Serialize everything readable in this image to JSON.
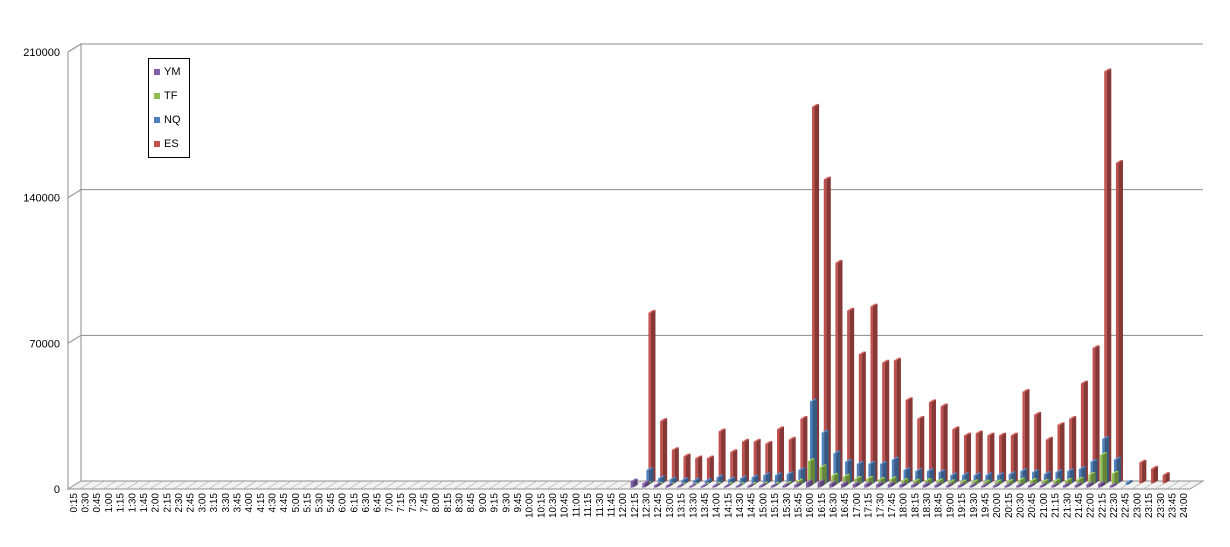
{
  "chart_data": {
    "type": "bar",
    "title": "",
    "xlabel": "",
    "ylabel": "",
    "ylim": [
      0,
      210000
    ],
    "yticks": [
      "0",
      "70000",
      "140000",
      "210000"
    ],
    "grid": true,
    "legend_position": "top-left",
    "categories": [
      "0:15",
      "0:30",
      "0:45",
      "1:00",
      "1:15",
      "1:30",
      "1:45",
      "2:00",
      "2:15",
      "2:30",
      "2:45",
      "3:00",
      "3:15",
      "3:30",
      "3:45",
      "4:00",
      "4:15",
      "4:30",
      "4:45",
      "5:00",
      "5:15",
      "5:30",
      "5:45",
      "6:00",
      "6:15",
      "6:30",
      "6:45",
      "7:00",
      "7:15",
      "7:30",
      "7:45",
      "8:00",
      "8:15",
      "8:30",
      "8:45",
      "9:00",
      "9:15",
      "9:30",
      "9:45",
      "10:00",
      "10:15",
      "10:30",
      "10:45",
      "11:00",
      "11:15",
      "11:30",
      "11:45",
      "12:00",
      "12:15",
      "12:30",
      "12:45",
      "13:00",
      "13:15",
      "13:30",
      "13:45",
      "14:00",
      "14:15",
      "14:30",
      "14:45",
      "15:00",
      "15:15",
      "15:30",
      "15:45",
      "16:00",
      "16:15",
      "16:30",
      "16:45",
      "17:00",
      "17:15",
      "17:30",
      "17:45",
      "18:00",
      "18:15",
      "18:30",
      "18:45",
      "19:00",
      "19:15",
      "19:30",
      "19:45",
      "20:00",
      "20:15",
      "20:30",
      "20:45",
      "21:00",
      "21:15",
      "21:30",
      "21:45",
      "22:00",
      "22:15",
      "22:30",
      "22:45",
      "23:00",
      "23:15",
      "23:30",
      "23:45",
      "24:00"
    ],
    "series": [
      {
        "name": "YM",
        "color": "#7f5fa8",
        "values": [
          0,
          0,
          0,
          0,
          0,
          0,
          0,
          0,
          0,
          0,
          0,
          0,
          0,
          0,
          0,
          0,
          0,
          0,
          0,
          0,
          0,
          0,
          0,
          0,
          0,
          0,
          0,
          0,
          0,
          0,
          0,
          0,
          0,
          0,
          0,
          0,
          0,
          0,
          0,
          0,
          0,
          0,
          0,
          0,
          0,
          0,
          0,
          0,
          3000,
          2000,
          1000,
          800,
          600,
          500,
          500,
          700,
          500,
          600,
          700,
          800,
          700,
          900,
          1200,
          2500,
          2500,
          1800,
          1600,
          1500,
          1500,
          1400,
          1500,
          1200,
          1100,
          1200,
          1100,
          900,
          900,
          800,
          800,
          800,
          800,
          900,
          900,
          800,
          900,
          1000,
          1100,
          1500,
          1800,
          900,
          0,
          0,
          0,
          0,
          0,
          0
        ]
      },
      {
        "name": "TF",
        "color": "#92be4f",
        "values": [
          0,
          0,
          0,
          0,
          0,
          0,
          0,
          0,
          0,
          0,
          0,
          0,
          0,
          0,
          0,
          0,
          0,
          0,
          0,
          0,
          0,
          0,
          0,
          0,
          0,
          0,
          0,
          0,
          0,
          0,
          0,
          0,
          0,
          0,
          0,
          0,
          0,
          0,
          0,
          0,
          0,
          0,
          0,
          0,
          0,
          0,
          0,
          0,
          0,
          1000,
          600,
          400,
          400,
          300,
          300,
          700,
          500,
          500,
          600,
          800,
          700,
          1100,
          2200,
          12000,
          9000,
          5000,
          4500,
          3500,
          3500,
          3000,
          3300,
          2500,
          2200,
          2500,
          2300,
          1800,
          1800,
          1800,
          1700,
          1800,
          2000,
          2800,
          2500,
          2000,
          2300,
          2500,
          3000,
          5500,
          15000,
          6000,
          0,
          0,
          0,
          0,
          0,
          0
        ]
      },
      {
        "name": "NQ",
        "color": "#4f81bd",
        "values": [
          0,
          0,
          0,
          0,
          0,
          0,
          0,
          0,
          0,
          0,
          0,
          0,
          0,
          0,
          0,
          0,
          0,
          0,
          0,
          0,
          0,
          0,
          0,
          0,
          0,
          0,
          0,
          0,
          0,
          0,
          0,
          0,
          0,
          0,
          0,
          0,
          0,
          0,
          0,
          0,
          0,
          0,
          0,
          0,
          0,
          0,
          0,
          0,
          0,
          7000,
          3000,
          2500,
          2200,
          2000,
          1800,
          3500,
          2500,
          3000,
          3500,
          4500,
          4500,
          5000,
          7000,
          40000,
          25000,
          15000,
          11000,
          10000,
          10000,
          10000,
          12000,
          7000,
          6500,
          6500,
          6000,
          4500,
          4500,
          4500,
          4500,
          4500,
          5000,
          6500,
          6000,
          5000,
          6000,
          6500,
          7500,
          11000,
          22000,
          12000,
          1000,
          0,
          0,
          0,
          0,
          0
        ]
      },
      {
        "name": "ES",
        "color": "#c0504d",
        "values": [
          0,
          0,
          0,
          0,
          0,
          0,
          0,
          0,
          0,
          0,
          0,
          0,
          0,
          0,
          0,
          0,
          0,
          0,
          0,
          0,
          0,
          0,
          0,
          0,
          0,
          0,
          0,
          0,
          0,
          0,
          0,
          0,
          0,
          0,
          0,
          0,
          0,
          0,
          0,
          0,
          0,
          0,
          0,
          0,
          0,
          0,
          0,
          0,
          0,
          82000,
          30000,
          16000,
          13000,
          12000,
          12000,
          25000,
          15000,
          20000,
          20000,
          19000,
          26000,
          21000,
          31000,
          181000,
          146000,
          106000,
          83000,
          62000,
          85000,
          58000,
          59000,
          40000,
          31000,
          39000,
          37000,
          26000,
          23000,
          24000,
          23000,
          23000,
          23000,
          44000,
          33000,
          21000,
          28000,
          31000,
          48000,
          65000,
          198000,
          154000,
          0,
          10000,
          7000,
          4000,
          0,
          0
        ]
      }
    ]
  }
}
